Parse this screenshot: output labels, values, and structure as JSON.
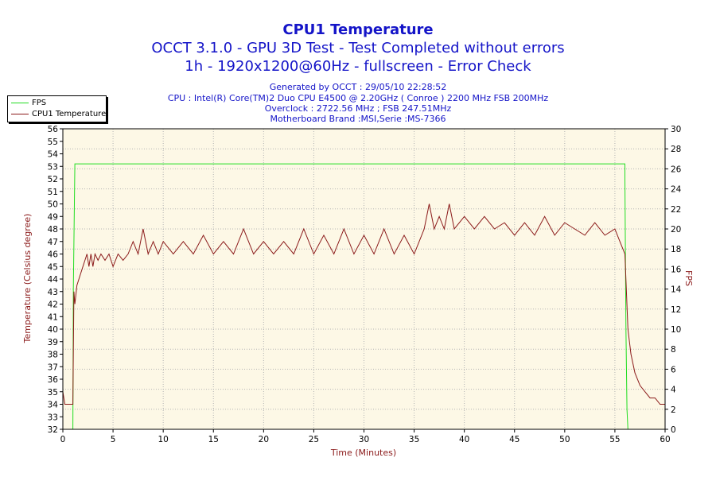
{
  "chart_data": {
    "type": "line",
    "title": "CPU1 Temperature",
    "subtitle": "OCCT 3.1.0 - GPU 3D Test - Test Completed without errors",
    "subtitle2": "1h - 1920x1200@60Hz - fullscreen - Error Check",
    "info": [
      "Generated by OCCT : 29/05/10 22:28:52",
      "CPU : Intel(R) Core(TM)2 Duo CPU E4500 @ 2.20GHz ( Conroe ) 2200 MHz FSB 200MHz",
      "Overclock : 2722.56 MHz ; FSB 247.51MHz",
      "Motherboard Brand :MSI,Serie :MS-7366"
    ],
    "xlabel": "Time (Minutes)",
    "ylabel": "Temperature (Celsius degree)",
    "y2label": "FPS",
    "xlim": [
      0,
      60
    ],
    "ylim": [
      32,
      56
    ],
    "y2lim": [
      0,
      30
    ],
    "x_ticks": [
      0,
      5,
      10,
      15,
      20,
      25,
      30,
      35,
      40,
      45,
      50,
      55,
      60
    ],
    "y_ticks": [
      32,
      33,
      34,
      35,
      36,
      37,
      38,
      39,
      40,
      41,
      42,
      43,
      44,
      45,
      46,
      47,
      48,
      49,
      50,
      51,
      52,
      53,
      54,
      55,
      56
    ],
    "y2_ticks": [
      0,
      2,
      4,
      6,
      8,
      10,
      12,
      14,
      16,
      18,
      20,
      22,
      24,
      26,
      28,
      30
    ],
    "grid": true,
    "legend_position": "top-left",
    "plot_background": "#fdf8e6",
    "series": [
      {
        "name": "FPS",
        "color": "#22dd22",
        "axis": "right",
        "x": [
          0,
          1.0,
          1.05,
          1.2,
          1.2,
          56.0,
          56.0,
          56.1,
          56.2,
          56.3,
          60
        ],
        "y": [
          0,
          0,
          14,
          26.5,
          26.5,
          26.5,
          25,
          10,
          2,
          0,
          0
        ]
      },
      {
        "name": "CPU1 Temperature",
        "color": "#8b1a1a",
        "axis": "left",
        "x": [
          0,
          0.2,
          0.3,
          1.0,
          1.1,
          1.2,
          1.4,
          1.6,
          1.8,
          2.0,
          2.2,
          2.4,
          2.6,
          2.8,
          3.0,
          3.2,
          3.5,
          3.8,
          4.2,
          4.6,
          5.0,
          5.5,
          6.0,
          6.5,
          7.0,
          7.5,
          8.0,
          8.5,
          9.0,
          9.5,
          10.0,
          11.0,
          12.0,
          13.0,
          14.0,
          15.0,
          16.0,
          17.0,
          18.0,
          19.0,
          20.0,
          21.0,
          22.0,
          23.0,
          24.0,
          25.0,
          26.0,
          27.0,
          28.0,
          29.0,
          30.0,
          31.0,
          32.0,
          33.0,
          34.0,
          35.0,
          35.5,
          36.0,
          36.5,
          37.0,
          37.5,
          38.0,
          38.5,
          39.0,
          40.0,
          41.0,
          42.0,
          43.0,
          44.0,
          45.0,
          46.0,
          47.0,
          48.0,
          49.0,
          50.0,
          51.0,
          52.0,
          53.0,
          54.0,
          55.0,
          55.5,
          56.0,
          56.3,
          56.6,
          57.0,
          57.5,
          58.0,
          58.5,
          59.0,
          59.5,
          60
        ],
        "y": [
          35,
          34,
          34,
          34,
          43,
          42,
          43.5,
          44,
          44.5,
          45,
          45.5,
          46,
          45,
          46,
          45,
          46,
          45.5,
          46,
          45.5,
          46,
          45,
          46,
          45.5,
          46,
          47,
          46,
          48,
          46,
          47,
          46,
          47,
          46,
          47,
          46,
          47.5,
          46,
          47,
          46,
          48,
          46,
          47,
          46,
          47,
          46,
          48,
          46,
          47.5,
          46,
          48,
          46,
          47.5,
          46,
          48,
          46,
          47.5,
          46,
          47,
          48,
          50,
          48,
          49,
          48,
          50,
          48,
          49,
          48,
          49,
          48,
          48.5,
          47.5,
          48.5,
          47.5,
          49,
          47.5,
          48.5,
          48,
          47.5,
          48.5,
          47.5,
          48,
          47,
          46,
          40,
          38,
          36.5,
          35.5,
          35,
          34.5,
          34.5,
          34,
          34
        ]
      }
    ]
  }
}
